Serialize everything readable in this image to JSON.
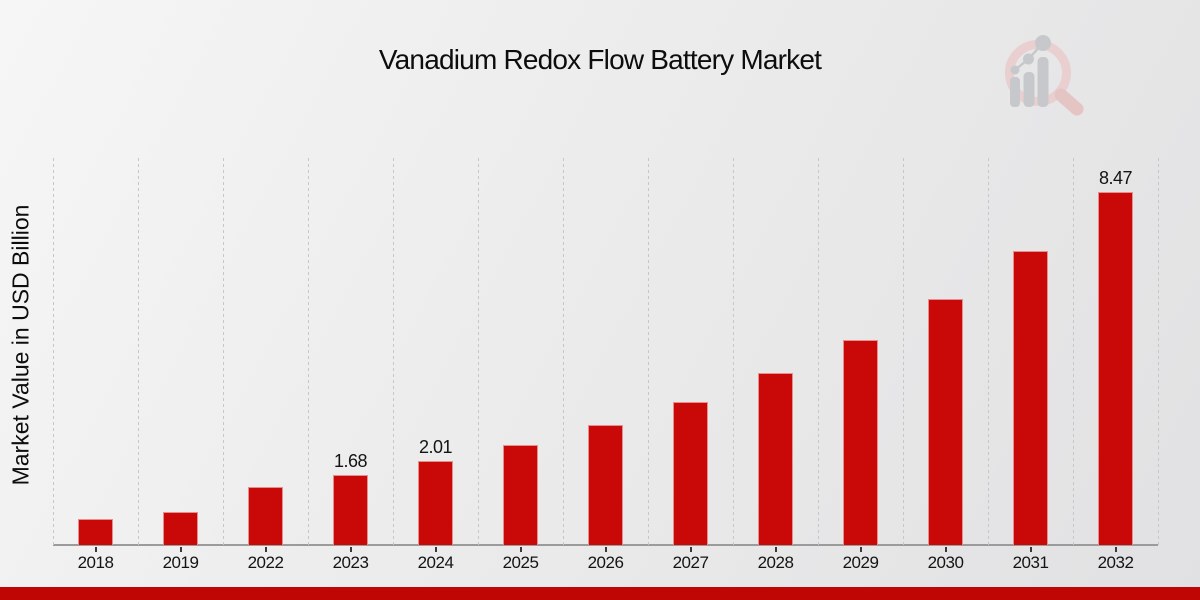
{
  "title": "Vanadium Redox Flow Battery Market",
  "y_axis_label": "Market Value in USD Billion",
  "logo": {
    "name": "magnifier-bar-chart-logo",
    "ring_color": "#e9cfcf",
    "handle_color": "#e5c4c4",
    "bars_color": "#c7c8cb"
  },
  "colors": {
    "bar_red": "#c90808",
    "footer_red": "#c00505",
    "gridline": "#c7c7c9",
    "axis_line": "#9b9b9b",
    "text": "#141414"
  },
  "chart_data": {
    "type": "bar",
    "title": "Vanadium Redox Flow Battery Market",
    "xlabel": "",
    "ylabel": "Market Value in USD Billion",
    "categories": [
      "2018",
      "2019",
      "2022",
      "2023",
      "2024",
      "2025",
      "2026",
      "2027",
      "2028",
      "2029",
      "2030",
      "2031",
      "2032"
    ],
    "values": [
      0.63,
      0.8,
      1.4,
      1.68,
      2.01,
      2.4,
      2.88,
      3.44,
      4.12,
      4.93,
      5.9,
      7.06,
      8.47
    ],
    "data_labels": [
      "",
      "",
      "",
      "1.68",
      "2.01",
      "",
      "",
      "",
      "",
      "",
      "",
      "",
      "8.47"
    ],
    "ylim": [
      0,
      9.29
    ],
    "y_tick_labels_shown": false,
    "grid": "vertical-dotted",
    "legend": "none",
    "bar_color": "#c90808"
  }
}
